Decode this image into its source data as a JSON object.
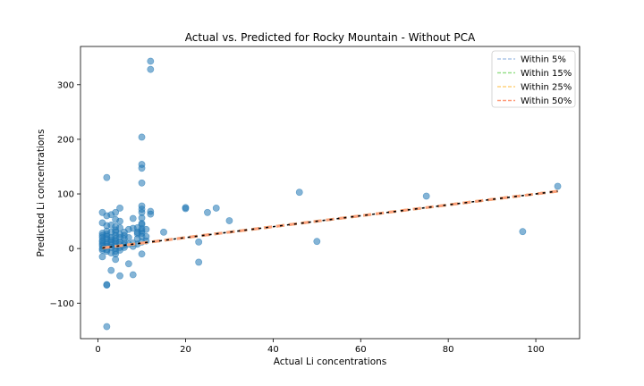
{
  "chart_data": {
    "type": "scatter",
    "title": "Actual vs. Predicted for Rocky Mountain - Without PCA",
    "xlabel": "Actual Li concentrations",
    "ylabel": "Predicted Li concentrations",
    "xlim": [
      -4,
      110
    ],
    "ylim": [
      -165,
      370
    ],
    "xticks": [
      0,
      20,
      40,
      60,
      80,
      100
    ],
    "yticks": [
      -100,
      0,
      100,
      200,
      300
    ],
    "grid": false,
    "legend_position": "top-right",
    "scatter_color": "#1f77b4",
    "points": [
      [
        2,
        -143
      ],
      [
        2,
        -66
      ],
      [
        2,
        -67
      ],
      [
        2,
        130
      ],
      [
        1,
        66
      ],
      [
        1,
        47
      ],
      [
        1,
        20
      ],
      [
        1,
        12
      ],
      [
        1,
        5
      ],
      [
        1,
        0
      ],
      [
        1,
        -3
      ],
      [
        1,
        -15
      ],
      [
        1,
        15
      ],
      [
        1,
        8
      ],
      [
        1,
        28
      ],
      [
        1,
        24
      ],
      [
        2,
        42
      ],
      [
        2,
        18
      ],
      [
        2,
        10
      ],
      [
        2,
        4
      ],
      [
        2,
        -2
      ],
      [
        2,
        -5
      ],
      [
        2,
        26
      ],
      [
        2,
        32
      ],
      [
        2,
        60
      ],
      [
        2,
        8
      ],
      [
        2,
        22
      ],
      [
        3,
        62
      ],
      [
        3,
        43
      ],
      [
        3,
        30
      ],
      [
        3,
        16
      ],
      [
        3,
        7
      ],
      [
        3,
        2
      ],
      [
        3,
        -8
      ],
      [
        3,
        -40
      ],
      [
        3,
        12
      ],
      [
        3,
        20
      ],
      [
        4,
        66
      ],
      [
        4,
        53
      ],
      [
        4,
        40
      ],
      [
        4,
        30
      ],
      [
        4,
        24
      ],
      [
        4,
        18
      ],
      [
        4,
        10
      ],
      [
        4,
        5
      ],
      [
        4,
        0
      ],
      [
        4,
        -5
      ],
      [
        4,
        -10
      ],
      [
        4,
        -20
      ],
      [
        4,
        14
      ],
      [
        4,
        34
      ],
      [
        5,
        74
      ],
      [
        5,
        50
      ],
      [
        5,
        38
      ],
      [
        5,
        26
      ],
      [
        5,
        20
      ],
      [
        5,
        12
      ],
      [
        5,
        7
      ],
      [
        5,
        2
      ],
      [
        5,
        -3
      ],
      [
        5,
        -50
      ],
      [
        6,
        30
      ],
      [
        6,
        24
      ],
      [
        6,
        18
      ],
      [
        6,
        10
      ],
      [
        6,
        6
      ],
      [
        6,
        2
      ],
      [
        7,
        35
      ],
      [
        7,
        20
      ],
      [
        7,
        8
      ],
      [
        7,
        -28
      ],
      [
        8,
        55
      ],
      [
        8,
        37
      ],
      [
        8,
        10
      ],
      [
        8,
        4
      ],
      [
        8,
        -48
      ],
      [
        9,
        38
      ],
      [
        9,
        30
      ],
      [
        9,
        27
      ],
      [
        9,
        18
      ],
      [
        9,
        8
      ],
      [
        10,
        204
      ],
      [
        10,
        154
      ],
      [
        10,
        147
      ],
      [
        10,
        120
      ],
      [
        10,
        78
      ],
      [
        10,
        72
      ],
      [
        10,
        66
      ],
      [
        10,
        56
      ],
      [
        10,
        46
      ],
      [
        10,
        44
      ],
      [
        10,
        36
      ],
      [
        10,
        32
      ],
      [
        10,
        28
      ],
      [
        10,
        22
      ],
      [
        10,
        12
      ],
      [
        10,
        -10
      ],
      [
        11,
        35
      ],
      [
        11,
        22
      ],
      [
        11,
        14
      ],
      [
        12,
        343
      ],
      [
        12,
        328
      ],
      [
        12,
        68
      ],
      [
        12,
        63
      ],
      [
        15,
        30
      ],
      [
        20,
        75
      ],
      [
        20,
        73
      ],
      [
        23,
        12
      ],
      [
        23,
        -25
      ],
      [
        25,
        66
      ],
      [
        27,
        74
      ],
      [
        30,
        51
      ],
      [
        46,
        103
      ],
      [
        50,
        13
      ],
      [
        75,
        96
      ],
      [
        97,
        31
      ],
      [
        105,
        114
      ]
    ],
    "reference_series": [
      {
        "name": "Within 5%",
        "color": "#aec7e8",
        "x": [
          1,
          105
        ],
        "y": [
          1,
          105
        ],
        "tolerance": 0.05
      },
      {
        "name": "Within 15%",
        "color": "#98df8a",
        "x": [
          1,
          105
        ],
        "y": [
          1,
          105
        ],
        "tolerance": 0.15
      },
      {
        "name": "Within 25%",
        "color": "#ffd27f",
        "x": [
          1,
          105
        ],
        "y": [
          1,
          105
        ],
        "tolerance": 0.25
      },
      {
        "name": "Within 50%",
        "color": "#ff9b7a",
        "x": [
          1,
          105
        ],
        "y": [
          1,
          105
        ],
        "tolerance": 0.5
      }
    ],
    "identity_line": {
      "color": "#000000",
      "x": [
        1,
        105
      ],
      "y": [
        1,
        105
      ]
    }
  }
}
